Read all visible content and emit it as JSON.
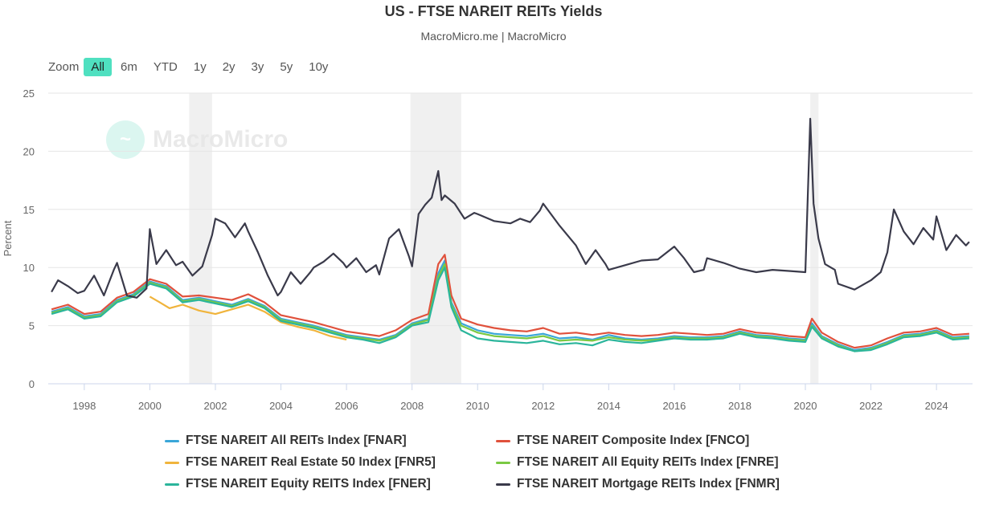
{
  "title": "US - FTSE NAREIT REITs Yields",
  "subtitle": "MacroMicro.me | MacroMicro",
  "watermark": "MacroMicro",
  "zoom": {
    "label": "Zoom",
    "options": [
      "All",
      "6m",
      "YTD",
      "1y",
      "2y",
      "3y",
      "5y",
      "10y"
    ],
    "active": "All"
  },
  "chart_data": {
    "type": "line",
    "ylabel": "Percent",
    "ylim": [
      0,
      25
    ],
    "yticks": [
      0,
      5,
      10,
      15,
      20,
      25
    ],
    "xlim": [
      1996.9,
      2025.1
    ],
    "xticks": [
      1998,
      2000,
      2002,
      2004,
      2006,
      2008,
      2010,
      2012,
      2014,
      2016,
      2018,
      2020,
      2022,
      2024
    ],
    "grid": "horizontal",
    "legend_position": "bottom",
    "recession_bands": [
      [
        2001.2,
        2001.9
      ],
      [
        2007.95,
        2009.5
      ],
      [
        2020.15,
        2020.4
      ]
    ],
    "series": [
      {
        "name": "FTSE NAREIT All REITs Index [FNAR]",
        "color": "#3aa6d8",
        "x": [
          1997,
          1997.5,
          1998,
          1998.5,
          1999,
          1999.5,
          2000,
          2000.5,
          2001,
          2001.5,
          2002,
          2002.5,
          2003,
          2003.5,
          2004,
          2004.5,
          2005,
          2005.5,
          2006,
          2006.5,
          2007,
          2007.5,
          2008,
          2008.5,
          2008.8,
          2009,
          2009.2,
          2009.5,
          2010,
          2010.5,
          2011,
          2011.5,
          2012,
          2012.5,
          2013,
          2013.5,
          2014,
          2014.5,
          2015,
          2015.5,
          2016,
          2016.5,
          2017,
          2017.5,
          2018,
          2018.5,
          2019,
          2019.5,
          2020,
          2020.2,
          2020.5,
          2021,
          2021.5,
          2022,
          2022.5,
          2023,
          2023.5,
          2024,
          2024.5,
          2025
        ],
        "y": [
          6.2,
          6.6,
          5.8,
          6.0,
          7.2,
          7.7,
          8.8,
          8.4,
          7.2,
          7.4,
          7.1,
          6.8,
          7.3,
          6.7,
          5.6,
          5.3,
          5.0,
          4.6,
          4.2,
          4.0,
          3.8,
          4.2,
          5.2,
          5.6,
          9.5,
          10.6,
          7.0,
          5.2,
          4.6,
          4.3,
          4.2,
          4.1,
          4.3,
          3.9,
          4.0,
          3.8,
          4.2,
          3.9,
          3.8,
          3.9,
          4.1,
          4.0,
          4.0,
          4.1,
          4.5,
          4.2,
          4.1,
          3.9,
          3.8,
          5.2,
          4.1,
          3.4,
          2.9,
          3.1,
          3.6,
          4.2,
          4.3,
          4.6,
          4.0,
          4.1
        ]
      },
      {
        "name": "FTSE NAREIT Composite Index [FNCO]",
        "color": "#e0513c",
        "x": [
          1997,
          1997.5,
          1998,
          1998.5,
          1999,
          1999.5,
          2000,
          2000.5,
          2001,
          2001.5,
          2002,
          2002.5,
          2003,
          2003.5,
          2004,
          2004.5,
          2005,
          2005.5,
          2006,
          2006.5,
          2007,
          2007.5,
          2008,
          2008.5,
          2008.8,
          2009,
          2009.2,
          2009.5,
          2010,
          2010.5,
          2011,
          2011.5,
          2012,
          2012.5,
          2013,
          2013.5,
          2014,
          2014.5,
          2015,
          2015.5,
          2016,
          2016.5,
          2017,
          2017.5,
          2018,
          2018.5,
          2019,
          2019.5,
          2020,
          2020.2,
          2020.5,
          2021,
          2021.5,
          2022,
          2022.5,
          2023,
          2023.5,
          2024,
          2024.5,
          2025
        ],
        "y": [
          6.4,
          6.8,
          6.0,
          6.2,
          7.4,
          7.9,
          9.0,
          8.6,
          7.5,
          7.6,
          7.4,
          7.2,
          7.7,
          7.0,
          5.9,
          5.6,
          5.3,
          4.9,
          4.5,
          4.3,
          4.1,
          4.6,
          5.5,
          6.0,
          10.3,
          11.1,
          7.6,
          5.6,
          5.1,
          4.8,
          4.6,
          4.5,
          4.8,
          4.3,
          4.4,
          4.2,
          4.4,
          4.2,
          4.1,
          4.2,
          4.4,
          4.3,
          4.2,
          4.3,
          4.7,
          4.4,
          4.3,
          4.1,
          4.0,
          5.6,
          4.4,
          3.6,
          3.1,
          3.3,
          3.9,
          4.4,
          4.5,
          4.8,
          4.2,
          4.3
        ]
      },
      {
        "name": "FTSE NAREIT Real Estate 50 Index [FNR5]",
        "color": "#f0b43c",
        "x": [
          2000,
          2000.3,
          2000.6,
          2001,
          2001.5,
          2002,
          2002.5,
          2003,
          2003.5,
          2004,
          2004.5,
          2005,
          2005.5,
          2006
        ],
        "y": [
          7.5,
          7.0,
          6.5,
          6.8,
          6.3,
          6.0,
          6.4,
          6.8,
          6.2,
          5.3,
          4.9,
          4.6,
          4.1,
          3.8
        ]
      },
      {
        "name": "FTSE NAREIT All Equity REITs Index [FNRE]",
        "color": "#7ac943",
        "x": [
          1997,
          1997.5,
          1998,
          1998.5,
          1999,
          1999.5,
          2000,
          2000.5,
          2001,
          2001.5,
          2002,
          2002.5,
          2003,
          2003.5,
          2004,
          2004.5,
          2005,
          2005.5,
          2006,
          2006.5,
          2007,
          2007.5,
          2008,
          2008.5,
          2008.8,
          2009,
          2009.2,
          2009.5,
          2010,
          2010.5,
          2011,
          2011.5,
          2012,
          2012.5,
          2013,
          2013.5,
          2014,
          2014.5,
          2015,
          2015.5,
          2016,
          2016.5,
          2017,
          2017.5,
          2018,
          2018.5,
          2019,
          2019.5,
          2020,
          2020.2,
          2020.5,
          2021,
          2021.5,
          2022,
          2022.5,
          2023,
          2023.5,
          2024,
          2024.5,
          2025
        ],
        "y": [
          6.1,
          6.5,
          5.7,
          5.9,
          7.1,
          7.6,
          8.7,
          8.3,
          7.1,
          7.3,
          7.0,
          6.7,
          7.2,
          6.6,
          5.5,
          5.2,
          4.9,
          4.5,
          4.1,
          3.9,
          3.7,
          4.1,
          5.1,
          5.5,
          9.2,
          10.3,
          6.8,
          5.0,
          4.4,
          4.1,
          4.0,
          3.9,
          4.1,
          3.7,
          3.8,
          3.7,
          4.0,
          3.8,
          3.7,
          3.8,
          4.0,
          3.9,
          3.9,
          4.0,
          4.4,
          4.1,
          4.0,
          3.8,
          3.7,
          5.0,
          4.0,
          3.3,
          2.8,
          3.0,
          3.5,
          4.1,
          4.2,
          4.5,
          3.9,
          4.0
        ]
      },
      {
        "name": "FTSE NAREIT Equity REITS Index [FNER]",
        "color": "#2bb59b",
        "x": [
          1997,
          1997.5,
          1998,
          1998.5,
          1999,
          1999.5,
          2000,
          2000.5,
          2001,
          2001.5,
          2002,
          2002.5,
          2003,
          2003.5,
          2004,
          2004.5,
          2005,
          2005.5,
          2006,
          2006.5,
          2007,
          2007.5,
          2008,
          2008.5,
          2008.8,
          2009,
          2009.2,
          2009.5,
          2010,
          2010.5,
          2011,
          2011.5,
          2012,
          2012.5,
          2013,
          2013.5,
          2014,
          2014.5,
          2015,
          2015.5,
          2016,
          2016.5,
          2017,
          2017.5,
          2018,
          2018.5,
          2019,
          2019.5,
          2020,
          2020.2,
          2020.5,
          2021,
          2021.5,
          2022,
          2022.5,
          2023,
          2023.5,
          2024,
          2024.5,
          2025
        ],
        "y": [
          6.0,
          6.4,
          5.6,
          5.8,
          7.0,
          7.5,
          8.6,
          8.2,
          7.0,
          7.2,
          6.9,
          6.6,
          7.1,
          6.5,
          5.4,
          5.1,
          4.8,
          4.4,
          4.0,
          3.8,
          3.5,
          4.0,
          5.0,
          5.3,
          8.9,
          10.0,
          6.6,
          4.6,
          3.9,
          3.7,
          3.6,
          3.5,
          3.7,
          3.4,
          3.5,
          3.3,
          3.8,
          3.6,
          3.5,
          3.7,
          3.9,
          3.8,
          3.8,
          3.9,
          4.3,
          4.0,
          3.9,
          3.7,
          3.6,
          4.9,
          3.9,
          3.2,
          2.8,
          2.9,
          3.4,
          4.0,
          4.1,
          4.4,
          3.8,
          3.9
        ]
      },
      {
        "name": "FTSE NAREIT Mortgage REITs Index [FNMR]",
        "color": "#3a3a4a",
        "x": [
          1997,
          1997.2,
          1997.5,
          1997.8,
          1998,
          1998.3,
          1998.6,
          1998.9,
          1999,
          1999.3,
          1999.6,
          1999.9,
          2000,
          2000.2,
          2000.5,
          2000.8,
          2001,
          2001.3,
          2001.6,
          2001.9,
          2002,
          2002.3,
          2002.6,
          2002.9,
          2003,
          2003.3,
          2003.6,
          2003.9,
          2004,
          2004.3,
          2004.6,
          2004.9,
          2005,
          2005.3,
          2005.6,
          2005.9,
          2006,
          2006.3,
          2006.6,
          2006.9,
          2007,
          2007.3,
          2007.6,
          2007.9,
          2008,
          2008.2,
          2008.4,
          2008.6,
          2008.8,
          2008.9,
          2009,
          2009.3,
          2009.6,
          2009.9,
          2010,
          2010.5,
          2011,
          2011.3,
          2011.6,
          2011.9,
          2012,
          2012.5,
          2013,
          2013.3,
          2013.6,
          2013.9,
          2014,
          2014.5,
          2015,
          2015.5,
          2016,
          2016.3,
          2016.6,
          2016.9,
          2017,
          2017.5,
          2018,
          2018.5,
          2019,
          2019.5,
          2020,
          2020.15,
          2020.25,
          2020.4,
          2020.6,
          2020.9,
          2021,
          2021.5,
          2022,
          2022.3,
          2022.5,
          2022.7,
          2023,
          2023.3,
          2023.6,
          2023.9,
          2024,
          2024.3,
          2024.6,
          2024.9,
          2025
        ],
        "y": [
          7.9,
          8.9,
          8.4,
          7.8,
          8.0,
          9.3,
          7.6,
          9.8,
          10.4,
          7.6,
          7.4,
          8.2,
          13.3,
          10.3,
          11.5,
          10.2,
          10.5,
          9.3,
          10.1,
          12.8,
          14.2,
          13.8,
          12.6,
          13.8,
          13.1,
          11.3,
          9.3,
          7.6,
          7.9,
          9.6,
          8.6,
          9.6,
          10.0,
          10.5,
          11.2,
          10.4,
          10.0,
          10.8,
          9.6,
          10.2,
          9.4,
          12.5,
          13.3,
          11.0,
          10.1,
          14.6,
          15.4,
          16.0,
          18.3,
          15.8,
          16.2,
          15.5,
          14.2,
          14.7,
          14.6,
          14.0,
          13.8,
          14.2,
          13.9,
          14.9,
          15.5,
          13.6,
          11.9,
          10.3,
          11.5,
          10.3,
          9.8,
          10.2,
          10.6,
          10.7,
          11.8,
          10.8,
          9.6,
          9.8,
          10.8,
          10.4,
          9.9,
          9.6,
          9.8,
          9.7,
          9.6,
          22.8,
          15.5,
          12.5,
          10.3,
          9.8,
          8.6,
          8.1,
          8.9,
          9.6,
          11.3,
          15.0,
          13.1,
          12.0,
          13.4,
          12.4,
          14.4,
          11.5,
          12.8,
          11.9,
          12.2
        ]
      }
    ]
  }
}
